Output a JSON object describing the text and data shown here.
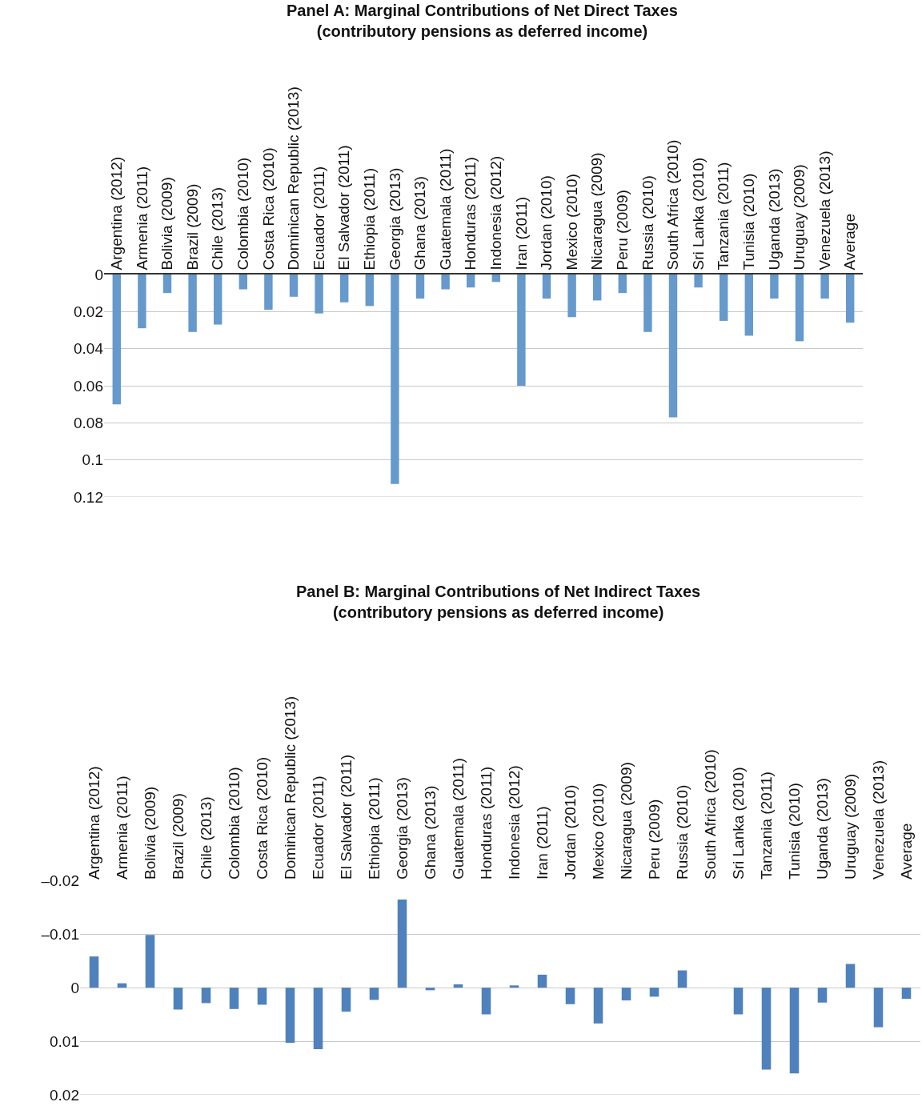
{
  "chart_data": [
    {
      "type": "bar",
      "title": "Panel A: Marginal Contributions of Net Direct Taxes\n(contributory pensions as deferred income)",
      "categories": [
        "Argentina (2012)",
        "Armenia (2011)",
        "Bolivia (2009)",
        "Brazil (2009)",
        "Chile (2013)",
        "Colombia (2010)",
        "Costa Rica (2010)",
        "Dominican Republic (2013)",
        "Ecuador (2011)",
        "El Salvador (2011)",
        "Ethiopia (2011)",
        "Georgia (2013)",
        "Ghana (2013)",
        "Guatemala (2011)",
        "Honduras (2011)",
        "Indonesia (2012)",
        "Iran (2011)",
        "Jordan (2010)",
        "Mexico (2010)",
        "Nicaragua (2009)",
        "Peru (2009)",
        "Russia (2010)",
        "South Africa (2010)",
        "Sri Lanka (2010)",
        "Tanzania (2011)",
        "Tunisia (2010)",
        "Uganda (2013)",
        "Uruguay (2009)",
        "Venezuela (2013)",
        "Average"
      ],
      "values": [
        0.07,
        0.029,
        0.01,
        0.031,
        0.027,
        0.008,
        0.019,
        0.012,
        0.021,
        0.015,
        0.017,
        0.113,
        0.013,
        0.008,
        0.007,
        0.004,
        0.06,
        0.013,
        0.023,
        0.014,
        0.01,
        0.031,
        0.077,
        0.007,
        0.025,
        0.033,
        0.013,
        0.036,
        0.013,
        0.026
      ],
      "color": "#6699cc",
      "ylim": [
        0.12,
        0
      ],
      "yticks": [
        0,
        0.02,
        0.04,
        0.06,
        0.08,
        0.1,
        0.12
      ],
      "grid": "y"
    },
    {
      "type": "bar",
      "title": "Panel B: Marginal Contributions of Net Indirect Taxes\n(contributory pensions as deferred income)",
      "categories": [
        "Argentina (2012)",
        "Armenia (2011)",
        "Bolivia (2009)",
        "Brazil (2009)",
        "Chile (2013)",
        "Colombia (2010)",
        "Costa Rica (2010)",
        "Dominican Republic (2013)",
        "Ecuador (2011)",
        "El Salvador (2011)",
        "Ethiopia (2011)",
        "Georgia (2013)",
        "Ghana (2013)",
        "Guatemala (2011)",
        "Honduras (2011)",
        "Indonesia (2012)",
        "Iran (2011)",
        "Jordan (2010)",
        "Mexico (2010)",
        "Nicaragua (2009)",
        "Peru (2009)",
        "Russia (2010)",
        "South Africa (2010)",
        "Sri Lanka (2010)",
        "Tanzania (2011)",
        "Tunisia (2010)",
        "Uganda (2013)",
        "Uruguay (2009)",
        "Venezuela (2013)",
        "Average"
      ],
      "values": [
        -0.0058,
        -0.0008,
        -0.0098,
        0.0041,
        0.0029,
        0.004,
        0.0032,
        0.0103,
        0.0115,
        0.0045,
        0.0023,
        -0.0164,
        0.0005,
        -0.0006,
        0.005,
        -0.0004,
        -0.0024,
        0.0031,
        0.0067,
        0.0024,
        0.0017,
        -0.0032,
        null,
        0.005,
        0.0153,
        0.016,
        0.0028,
        -0.0044,
        0.0074,
        0.0021
      ],
      "color": "#4f81bd",
      "ylim": [
        0.02,
        -0.02
      ],
      "yticks": [
        {
          "value": -0.02,
          "label": "–0.02"
        },
        {
          "value": -0.01,
          "label": "–0.01"
        },
        0,
        0.01,
        0.02
      ],
      "grid": "y"
    }
  ]
}
